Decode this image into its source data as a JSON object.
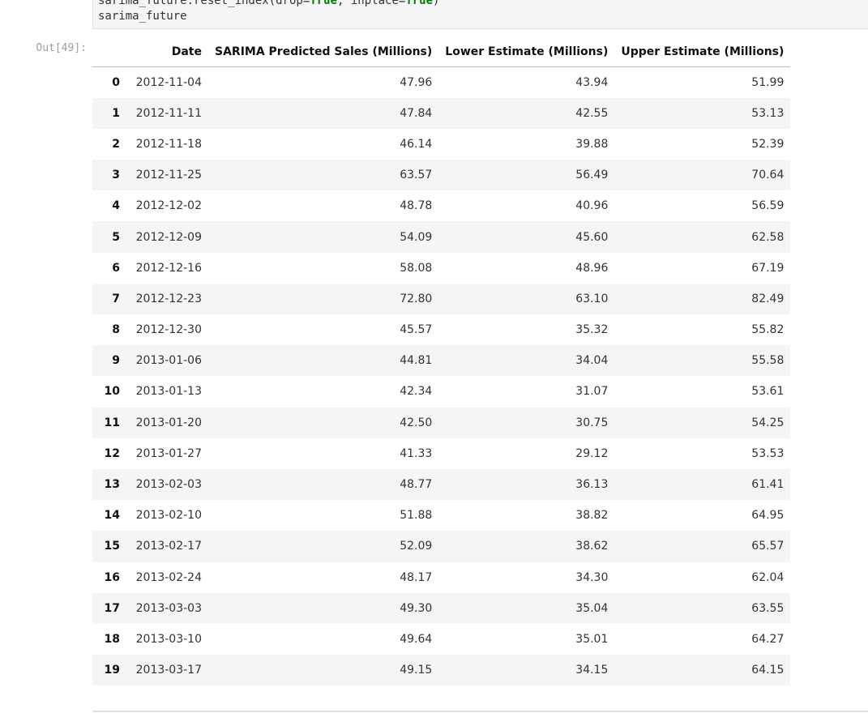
{
  "code": {
    "line1_prefix": "sarima_future.reset_index(drop=",
    "line1_true1": "True",
    "line1_mid": ", inplace=",
    "line1_true2": "True",
    "line1_suffix": ")",
    "line2": "sarima_future"
  },
  "output_prompt": "Out[49]:",
  "table": {
    "columns": [
      "",
      "Date",
      "SARIMA Predicted Sales (Millions)",
      "Lower Estimate (Millions)",
      "Upper Estimate (Millions)"
    ],
    "rows": [
      [
        "0",
        "2012-11-04",
        "47.96",
        "43.94",
        "51.99"
      ],
      [
        "1",
        "2012-11-11",
        "47.84",
        "42.55",
        "53.13"
      ],
      [
        "2",
        "2012-11-18",
        "46.14",
        "39.88",
        "52.39"
      ],
      [
        "3",
        "2012-11-25",
        "63.57",
        "56.49",
        "70.64"
      ],
      [
        "4",
        "2012-12-02",
        "48.78",
        "40.96",
        "56.59"
      ],
      [
        "5",
        "2012-12-09",
        "54.09",
        "45.60",
        "62.58"
      ],
      [
        "6",
        "2012-12-16",
        "58.08",
        "48.96",
        "67.19"
      ],
      [
        "7",
        "2012-12-23",
        "72.80",
        "63.10",
        "82.49"
      ],
      [
        "8",
        "2012-12-30",
        "45.57",
        "35.32",
        "55.82"
      ],
      [
        "9",
        "2013-01-06",
        "44.81",
        "34.04",
        "55.58"
      ],
      [
        "10",
        "2013-01-13",
        "42.34",
        "31.07",
        "53.61"
      ],
      [
        "11",
        "2013-01-20",
        "42.50",
        "30.75",
        "54.25"
      ],
      [
        "12",
        "2013-01-27",
        "41.33",
        "29.12",
        "53.53"
      ],
      [
        "13",
        "2013-02-03",
        "48.77",
        "36.13",
        "61.41"
      ],
      [
        "14",
        "2013-02-10",
        "51.88",
        "38.82",
        "64.95"
      ],
      [
        "15",
        "2013-02-17",
        "52.09",
        "38.62",
        "65.57"
      ],
      [
        "16",
        "2013-02-24",
        "48.17",
        "34.30",
        "62.04"
      ],
      [
        "17",
        "2013-03-03",
        "49.30",
        "35.04",
        "63.55"
      ],
      [
        "18",
        "2013-03-10",
        "49.64",
        "35.01",
        "64.27"
      ],
      [
        "19",
        "2013-03-17",
        "49.15",
        "34.15",
        "64.15"
      ]
    ]
  }
}
